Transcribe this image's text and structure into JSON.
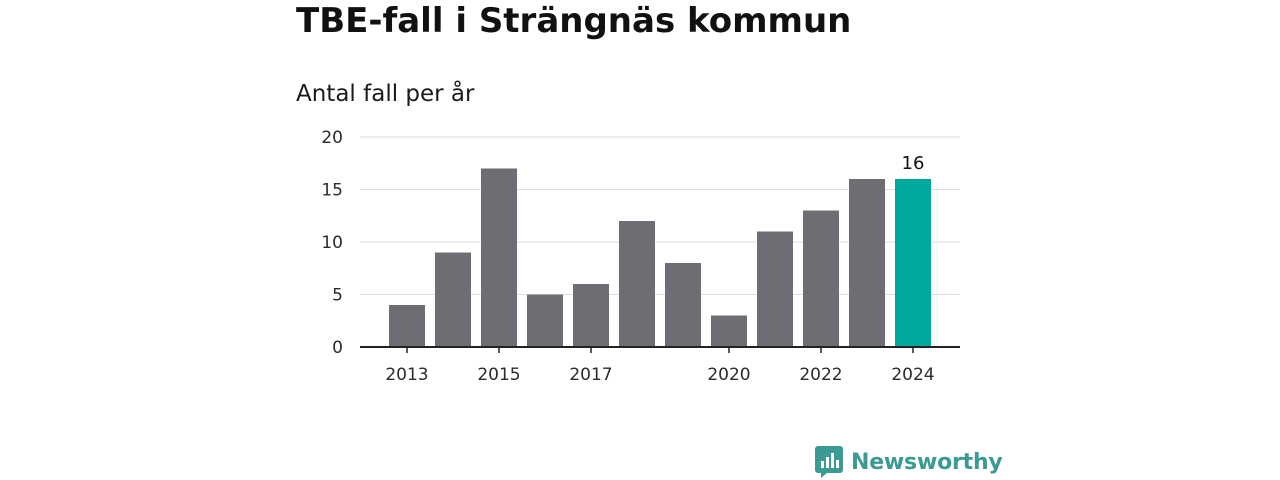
{
  "chart_data": {
    "type": "bar",
    "title": "TBE-fall i Strängnäs kommun",
    "subtitle": "Antal fall per år",
    "categories": [
      2013,
      2014,
      2015,
      2016,
      2017,
      2018,
      2019,
      2020,
      2021,
      2022,
      2023,
      2024
    ],
    "x_tick_labels": [
      "2013",
      "2015",
      "2017",
      "2020",
      "2022",
      "2024"
    ],
    "values": [
      4,
      9,
      17,
      5,
      6,
      12,
      8,
      3,
      11,
      13,
      16,
      16
    ],
    "ylim": [
      0,
      20
    ],
    "y_ticks": [
      0,
      5,
      10,
      15,
      20
    ],
    "grid": true,
    "highlight_index": 11,
    "data_labels": [
      {
        "index": 11,
        "text": "16"
      }
    ],
    "colors": {
      "bar": "#6e6d73",
      "highlight": "#00a99d",
      "grid": "#dddddd",
      "axis": "#222222"
    }
  },
  "brand": {
    "name": "Newsworthy",
    "color": "#3b9a92",
    "icon": "newsworthy-logo-icon"
  }
}
